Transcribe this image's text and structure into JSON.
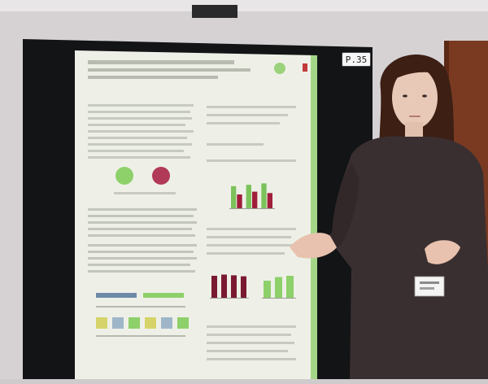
{
  "scene": {
    "description_tags": [
      "poster-session",
      "presenter",
      "poster-board"
    ],
    "board_label": "P.35",
    "colors": {
      "wall": "#d6d2d4",
      "board": "#121416",
      "poster_paper": "#eef0e8",
      "accent_green": "#8ed06a",
      "accent_red": "#a01e3a",
      "door": "#7a3a22",
      "presenter_top": "#3a2f30",
      "presenter_hair": "#3d1f14"
    },
    "poster_chart_top": {
      "type": "bar",
      "series": [
        {
          "color": "#7cc25a",
          "values": [
            0.8,
            0.85,
            0.9
          ]
        },
        {
          "color": "#a01e3a",
          "values": [
            0.5,
            0.6,
            0.55
          ]
        }
      ]
    },
    "poster_chart_bottom_left": {
      "type": "bar",
      "series": [
        {
          "color": "#7a1a30",
          "values": [
            0.9,
            0.95,
            0.92,
            0.88
          ]
        }
      ]
    },
    "poster_chart_bottom_right": {
      "type": "bar",
      "series": [
        {
          "color": "#8ed06a",
          "values": [
            0.7,
            0.85,
            0.9
          ]
        }
      ]
    }
  }
}
